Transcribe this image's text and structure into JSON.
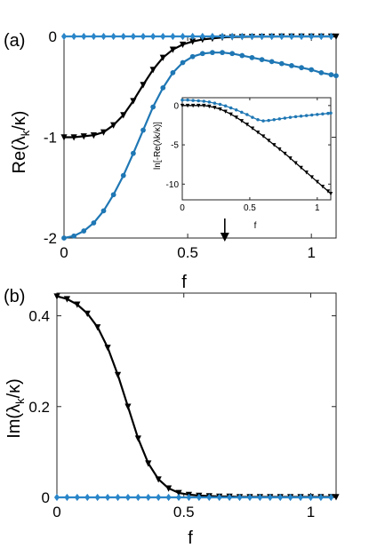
{
  "colors": {
    "black_series": "#000000",
    "blue_series": "#1f77b4",
    "diamond_series": "#2a86c9"
  },
  "panels": {
    "a": {
      "label": "(a)",
      "xlabel": "f",
      "ylabel": "Re(λk/κ)",
      "ylabel_main": "Re(λ",
      "ylabel_sub": "k",
      "ylabel_end": "/κ)"
    },
    "b": {
      "label": "(b)",
      "xlabel": "f",
      "ylabel": "Im(λk/κ)",
      "ylabel_main": "Im(λ",
      "ylabel_sub": "k",
      "ylabel_end": "/κ)"
    },
    "inset": {
      "xlabel": "f",
      "ylabel": "ln[-Re(λk/κ)]"
    }
  },
  "arrow_marker_f": 0.65,
  "chart_data": [
    {
      "id": "a",
      "type": "line",
      "title": "",
      "xlabel": "f",
      "ylabel": "Re(λk/κ)",
      "xlim": [
        0,
        1.1
      ],
      "ylim": [
        -2,
        0
      ],
      "xticks": [
        0,
        0.5,
        1
      ],
      "xtick_labels": [
        "0",
        "0.5",
        "1"
      ],
      "yticks": [
        -2,
        -1,
        0
      ],
      "ytick_labels": [
        "-2",
        "-1",
        "0"
      ],
      "series": [
        {
          "marker": "triangle-down",
          "color": "#000000",
          "x": [
            0,
            0.04,
            0.08,
            0.12,
            0.16,
            0.2,
            0.24,
            0.28,
            0.32,
            0.36,
            0.4,
            0.44,
            0.48,
            0.52,
            0.56,
            0.6,
            0.64,
            0.68,
            0.72,
            0.76,
            0.8,
            0.84,
            0.88,
            0.92,
            0.96,
            1.0,
            1.04,
            1.08,
            1.1
          ],
          "y": [
            -1.0,
            -1.0,
            -0.99,
            -0.98,
            -0.95,
            -0.88,
            -0.78,
            -0.64,
            -0.48,
            -0.33,
            -0.21,
            -0.13,
            -0.08,
            -0.05,
            -0.03,
            -0.02,
            -0.01,
            -0.006,
            -0.004,
            -0.003,
            -0.002,
            -0.001,
            0,
            0,
            0,
            0,
            0,
            0,
            0
          ]
        },
        {
          "marker": "circle",
          "color": "#1f77b4",
          "x": [
            0,
            0.04,
            0.08,
            0.12,
            0.16,
            0.2,
            0.24,
            0.28,
            0.32,
            0.36,
            0.4,
            0.44,
            0.48,
            0.52,
            0.56,
            0.6,
            0.64,
            0.68,
            0.72,
            0.76,
            0.8,
            0.84,
            0.88,
            0.92,
            0.96,
            1.0,
            1.04,
            1.08,
            1.1
          ],
          "y": [
            -2.0,
            -1.98,
            -1.93,
            -1.85,
            -1.73,
            -1.57,
            -1.38,
            -1.16,
            -0.93,
            -0.7,
            -0.51,
            -0.36,
            -0.26,
            -0.2,
            -0.17,
            -0.16,
            -0.16,
            -0.17,
            -0.19,
            -0.21,
            -0.23,
            -0.25,
            -0.27,
            -0.29,
            -0.31,
            -0.33,
            -0.36,
            -0.38,
            -0.39
          ]
        },
        {
          "marker": "diamond",
          "color": "#2a86c9",
          "x": [
            0,
            0.04,
            0.08,
            0.12,
            0.16,
            0.2,
            0.24,
            0.28,
            0.32,
            0.36,
            0.4,
            0.44,
            0.48,
            0.52,
            0.56,
            0.6,
            0.64,
            0.68,
            0.72,
            0.76,
            0.8,
            0.84,
            0.88,
            0.92,
            0.96,
            1.0,
            1.04,
            1.08
          ],
          "y": [
            0,
            0,
            0,
            0,
            0,
            0,
            0,
            0,
            0,
            0,
            0,
            0,
            0,
            0,
            0,
            0,
            0,
            0,
            0,
            0,
            0,
            0,
            0,
            0,
            0,
            0,
            0,
            0
          ]
        }
      ]
    },
    {
      "id": "inset",
      "type": "line",
      "title": "",
      "xlabel": "f",
      "ylabel": "ln[-Re(λk/κ)]",
      "xlim": [
        0,
        1.1
      ],
      "ylim": [
        -12,
        1
      ],
      "xticks": [
        0,
        0.5,
        1
      ],
      "xtick_labels": [
        "0",
        "0.5",
        "1"
      ],
      "yticks": [
        -10,
        -5,
        0
      ],
      "ytick_labels": [
        "-10",
        "-5",
        "0"
      ],
      "series": [
        {
          "marker": "triangle-down",
          "color": "#000000",
          "x": [
            0,
            0.04,
            0.08,
            0.12,
            0.16,
            0.2,
            0.24,
            0.28,
            0.32,
            0.36,
            0.4,
            0.44,
            0.48,
            0.52,
            0.56,
            0.6,
            0.64,
            0.68,
            0.72,
            0.76,
            0.8,
            0.84,
            0.88,
            0.92,
            0.96,
            1.0,
            1.04,
            1.08,
            1.1
          ],
          "y": [
            0,
            0,
            0,
            0,
            0,
            -0.1,
            -0.25,
            -0.45,
            -0.75,
            -1.1,
            -1.5,
            -1.95,
            -2.4,
            -2.9,
            -3.4,
            -3.9,
            -4.45,
            -5.0,
            -5.55,
            -6.1,
            -6.7,
            -7.3,
            -7.9,
            -8.5,
            -9.1,
            -9.7,
            -10.3,
            -10.9,
            -11.2
          ]
        },
        {
          "marker": "circle",
          "color": "#1f77b4",
          "x": [
            0,
            0.04,
            0.08,
            0.12,
            0.16,
            0.2,
            0.24,
            0.28,
            0.32,
            0.36,
            0.4,
            0.44,
            0.48,
            0.52,
            0.56,
            0.6,
            0.64,
            0.68,
            0.72,
            0.76,
            0.8,
            0.84,
            0.88,
            0.92,
            0.96,
            1.0,
            1.04,
            1.08,
            1.1
          ],
          "y": [
            0.7,
            0.7,
            0.65,
            0.6,
            0.55,
            0.45,
            0.3,
            0.15,
            -0.05,
            -0.3,
            -0.55,
            -0.85,
            -1.15,
            -1.5,
            -1.8,
            -1.95,
            -1.9,
            -1.8,
            -1.7,
            -1.6,
            -1.5,
            -1.42,
            -1.35,
            -1.28,
            -1.2,
            -1.13,
            -1.07,
            -1.0,
            -0.95
          ]
        }
      ]
    },
    {
      "id": "b",
      "type": "line",
      "title": "",
      "xlabel": "f",
      "ylabel": "Im(λk/κ)",
      "xlim": [
        0,
        1.1
      ],
      "ylim": [
        0,
        0.45
      ],
      "xticks": [
        0,
        0.5,
        1
      ],
      "xtick_labels": [
        "0",
        "0.5",
        "1"
      ],
      "yticks": [
        0,
        0.2,
        0.4
      ],
      "ytick_labels": [
        "0",
        "0.2",
        "0.4"
      ],
      "series": [
        {
          "marker": "triangle-down",
          "color": "#000000",
          "x": [
            0.0,
            0.04,
            0.08,
            0.12,
            0.16,
            0.2,
            0.24,
            0.28,
            0.32,
            0.36,
            0.4,
            0.44,
            0.48,
            0.52,
            0.56,
            0.6,
            0.64,
            0.68,
            0.72,
            0.76,
            0.8,
            0.84,
            0.88,
            0.92,
            0.96,
            1.0,
            1.04,
            1.08,
            1.1
          ],
          "y": [
            0.443,
            0.437,
            0.425,
            0.405,
            0.375,
            0.33,
            0.27,
            0.2,
            0.13,
            0.075,
            0.04,
            0.02,
            0.01,
            0.006,
            0.004,
            0.003,
            0.002,
            0.002,
            0.001,
            0.001,
            0.001,
            0.001,
            0.001,
            0.001,
            0.001,
            0.001,
            0.001,
            0.001,
            0.001
          ]
        },
        {
          "marker": "diamond",
          "color": "#2a86c9",
          "x": [
            0.0,
            0.04,
            0.08,
            0.12,
            0.16,
            0.2,
            0.24,
            0.28,
            0.32,
            0.36,
            0.4,
            0.44,
            0.48,
            0.52,
            0.56,
            0.6,
            0.64,
            0.68,
            0.72,
            0.76,
            0.8,
            0.84,
            0.88,
            0.92,
            0.96,
            1.0,
            1.04,
            1.08
          ],
          "y": [
            0,
            0,
            0,
            0,
            0,
            0,
            0,
            0,
            0,
            0,
            0,
            0,
            0,
            0,
            0,
            0,
            0,
            0,
            0,
            0,
            0,
            0,
            0,
            0,
            0,
            0,
            0,
            0
          ]
        }
      ]
    }
  ]
}
